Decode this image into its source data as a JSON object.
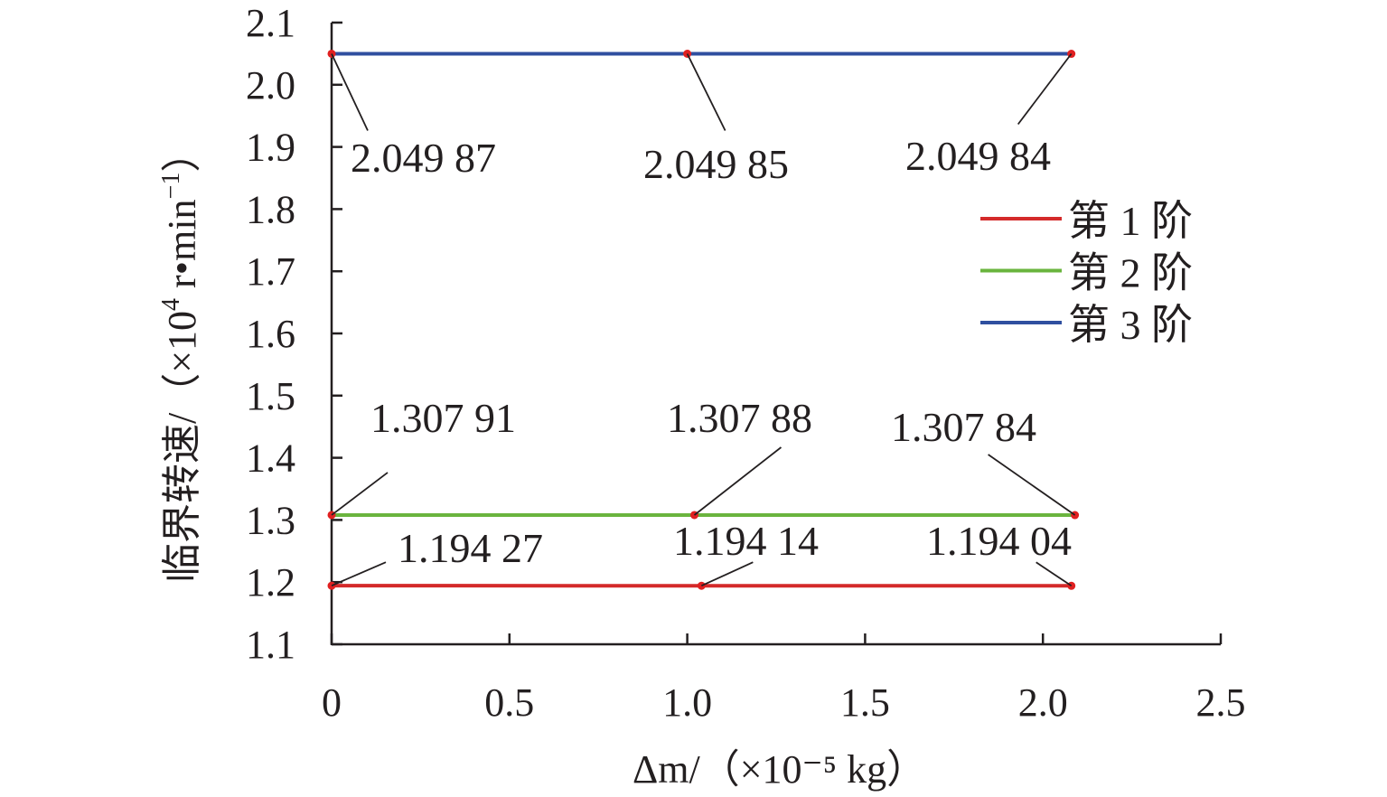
{
  "chart_data": {
    "type": "line",
    "title": "",
    "xlabel": "Δm/（×10⁻⁵ kg）",
    "xlabel_parts": {
      "delta": "Δ",
      "var": "m",
      "rest": "/（×10",
      "exp": "−5",
      "unit": " kg）"
    },
    "ylabel": "临界转速/（×10⁴ r•min⁻¹）",
    "ylabel_parts": {
      "main": "临界转速/（×10",
      "exp": "4",
      "mid": " r•min",
      "exp2": "−1",
      "end": "）"
    },
    "xlim": [
      0,
      2.5
    ],
    "ylim": [
      1.1,
      2.1
    ],
    "xticks": [
      "0",
      "0.5",
      "1.0",
      "1.5",
      "2.0",
      "2.5"
    ],
    "yticks": [
      "1.1",
      "1.2",
      "1.3",
      "1.4",
      "1.5",
      "1.6",
      "1.7",
      "1.8",
      "1.9",
      "2.0",
      "2.1"
    ],
    "grid": false,
    "legend_position": "right",
    "series": [
      {
        "name": "第 1 阶",
        "color": "#d42a2a",
        "x": [
          0,
          1.04,
          2.08
        ],
        "y": [
          1.19427,
          1.19414,
          1.19404
        ],
        "labels": [
          "1.194 27",
          "1.194 14",
          "1.194 04"
        ]
      },
      {
        "name": "第 2 阶",
        "color": "#6ab43e",
        "x": [
          0,
          1.02,
          2.09
        ],
        "y": [
          1.30791,
          1.30788,
          1.30784
        ],
        "labels": [
          "1.307 91",
          "1.307 88",
          "1.307 84"
        ]
      },
      {
        "name": "第 3 阶",
        "color": "#2f4f9f",
        "x": [
          0,
          1.0,
          2.08
        ],
        "y": [
          2.04987,
          2.04985,
          2.04984
        ],
        "labels": [
          "2.049 87",
          "2.049 85",
          "2.049 84"
        ]
      }
    ],
    "marker_color": "#e02020"
  }
}
